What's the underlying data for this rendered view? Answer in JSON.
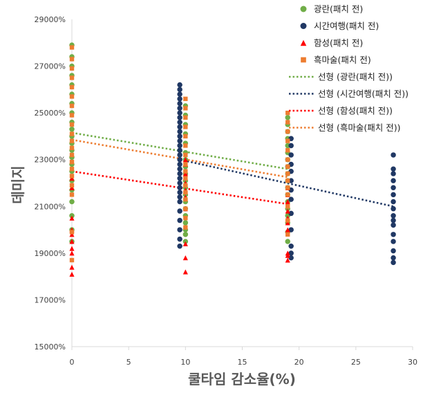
{
  "chart_data": {
    "type": "scatter",
    "xlabel": "쿨타임 감소율(%)",
    "ylabel": "데미지",
    "xlim": [
      0,
      30
    ],
    "ylim": [
      15000,
      29000
    ],
    "xticks": [
      0,
      5,
      10,
      15,
      20,
      25,
      30
    ],
    "yticks": [
      15000,
      17000,
      19000,
      21000,
      23000,
      25000,
      27000,
      29000
    ],
    "y_tick_suffix": "%",
    "grid": false,
    "legend_position": "top-right",
    "series": [
      {
        "name": "광란(패치 전)",
        "marker": "circle",
        "color": "#70AD47",
        "x": [
          0,
          0,
          0,
          0,
          0,
          0,
          0,
          0,
          0,
          0,
          0,
          0,
          0,
          0,
          0,
          0,
          0,
          0,
          0,
          0,
          0,
          0,
          10,
          10,
          10,
          10,
          10,
          10,
          10,
          10,
          10,
          10,
          10,
          10,
          10,
          10,
          10,
          10,
          10,
          10,
          10,
          19,
          19,
          19,
          19,
          19,
          19,
          19,
          19,
          19,
          19,
          19,
          19,
          19,
          19,
          19,
          19,
          19,
          19
        ],
        "y": [
          27900,
          27400,
          27000,
          26600,
          26200,
          25800,
          25400,
          25000,
          24600,
          24300,
          24000,
          23700,
          23400,
          23100,
          22800,
          22500,
          22100,
          21700,
          21200,
          20600,
          20000,
          19500,
          25300,
          24900,
          24500,
          24100,
          23700,
          23300,
          23000,
          22700,
          22400,
          22100,
          21800,
          21500,
          21200,
          20900,
          20600,
          20300,
          20000,
          19800,
          19500,
          24800,
          24500,
          24200,
          23900,
          23600,
          23300,
          23000,
          22700,
          22400,
          22100,
          21800,
          21500,
          21200,
          20900,
          20600,
          20300,
          19900,
          19500
        ],
        "trend": {
          "name": "선형 (광란(패치 전))",
          "from": [
            0,
            24150
          ],
          "to": [
            19,
            22600
          ]
        }
      },
      {
        "name": "시간여행(패치 전)",
        "marker": "circle",
        "color": "#203864",
        "x": [
          9.5,
          9.5,
          9.5,
          9.5,
          9.5,
          9.5,
          9.5,
          9.5,
          9.5,
          9.5,
          9.5,
          9.5,
          9.5,
          9.5,
          9.5,
          9.5,
          9.5,
          9.5,
          9.5,
          9.5,
          9.5,
          9.5,
          9.5,
          9.5,
          9.5,
          9.5,
          9.5,
          9.5,
          9.5,
          9.5,
          9.5,
          19.3,
          19.3,
          19.3,
          19.3,
          19.3,
          19.3,
          19.3,
          19.3,
          19.3,
          19.3,
          19.3,
          19.3,
          19.3,
          28.3,
          28.3,
          28.3,
          28.3,
          28.3,
          28.3,
          28.3,
          28.3,
          28.3,
          28.3,
          28.3,
          28.3,
          28.3,
          28.3,
          28.3,
          28.3
        ],
        "y": [
          26200,
          26000,
          25800,
          25600,
          25400,
          25200,
          25000,
          24800,
          24600,
          24400,
          24200,
          24000,
          23800,
          23600,
          23400,
          23200,
          23000,
          22800,
          22600,
          22400,
          22200,
          22000,
          21800,
          21600,
          21400,
          21200,
          20800,
          20400,
          20000,
          19600,
          19300,
          23900,
          23600,
          23200,
          22800,
          22500,
          22100,
          21700,
          21300,
          20700,
          20000,
          19300,
          19000,
          18800,
          23200,
          22600,
          22400,
          22100,
          21800,
          21500,
          21200,
          20900,
          20600,
          20400,
          20200,
          19800,
          19500,
          19100,
          18800,
          18600
        ],
        "trend": {
          "name": "선형 (시간여행(패치 전))",
          "from": [
            9.5,
            23000
          ],
          "to": [
            28.3,
            21000
          ]
        }
      },
      {
        "name": "함성(패치 전)",
        "marker": "triangle",
        "color": "#FF0000",
        "x": [
          0,
          0,
          0,
          0,
          0,
          0,
          0,
          0,
          0,
          0,
          10,
          10,
          10,
          10,
          10,
          10,
          10,
          10,
          10,
          10,
          19,
          19,
          19,
          19,
          19,
          19,
          19,
          19,
          19,
          19
        ],
        "y": [
          22200,
          21800,
          20500,
          20000,
          19800,
          19500,
          19200,
          19000,
          18400,
          18100,
          23000,
          22800,
          22400,
          22000,
          21700,
          21400,
          20900,
          19400,
          18800,
          18200,
          21800,
          21500,
          21200,
          20800,
          20500,
          20300,
          20000,
          19000,
          18900,
          18700
        ],
        "trend": {
          "name": "선형 (함성(패치 전))",
          "from": [
            0,
            22500
          ],
          "to": [
            19,
            21100
          ]
        }
      },
      {
        "name": "흑마술(패치 전)",
        "marker": "square",
        "color": "#ED7D31",
        "x": [
          0,
          0,
          0,
          0,
          0,
          0,
          0,
          0,
          0,
          0,
          0,
          0,
          0,
          0,
          0,
          0,
          0,
          0,
          0,
          0,
          10,
          10,
          10,
          10,
          10,
          10,
          10,
          10,
          10,
          10,
          10,
          10,
          10,
          10,
          10,
          10,
          19,
          19,
          19,
          19,
          19,
          19,
          19,
          19,
          19,
          19,
          19,
          19,
          19,
          19
        ],
        "y": [
          27800,
          27300,
          26900,
          26500,
          26100,
          25700,
          25300,
          24900,
          24500,
          24100,
          23800,
          23500,
          23200,
          22900,
          22600,
          22300,
          21900,
          21500,
          19900,
          18700,
          25600,
          25200,
          24800,
          24400,
          24000,
          23600,
          23200,
          22800,
          22500,
          22200,
          21900,
          21600,
          21300,
          20900,
          20500,
          20100,
          25000,
          24600,
          24200,
          23800,
          23400,
          23000,
          22700,
          22400,
          22100,
          21800,
          21500,
          21000,
          20400,
          19800
        ],
        "trend": {
          "name": "선형 (흑마술(패치 전))",
          "from": [
            0,
            23850
          ],
          "to": [
            19,
            22250
          ]
        }
      }
    ],
    "legend": [
      {
        "label": "광란(패치 전)",
        "kind": "marker",
        "series": 0
      },
      {
        "label": "시간여행(패치 전)",
        "kind": "marker",
        "series": 1
      },
      {
        "label": "함성(패치 전)",
        "kind": "marker",
        "series": 2
      },
      {
        "label": "흑마술(패치 전)",
        "kind": "marker",
        "series": 3
      },
      {
        "label": "선형 (광란(패치 전))",
        "kind": "trend",
        "series": 0
      },
      {
        "label": "선형 (시간여행(패치 전))",
        "kind": "trend",
        "series": 1
      },
      {
        "label": "선형 (함성(패치 전))",
        "kind": "trend",
        "series": 2
      },
      {
        "label": "선형 (흑마술(패치 전))",
        "kind": "trend",
        "series": 3
      }
    ]
  }
}
